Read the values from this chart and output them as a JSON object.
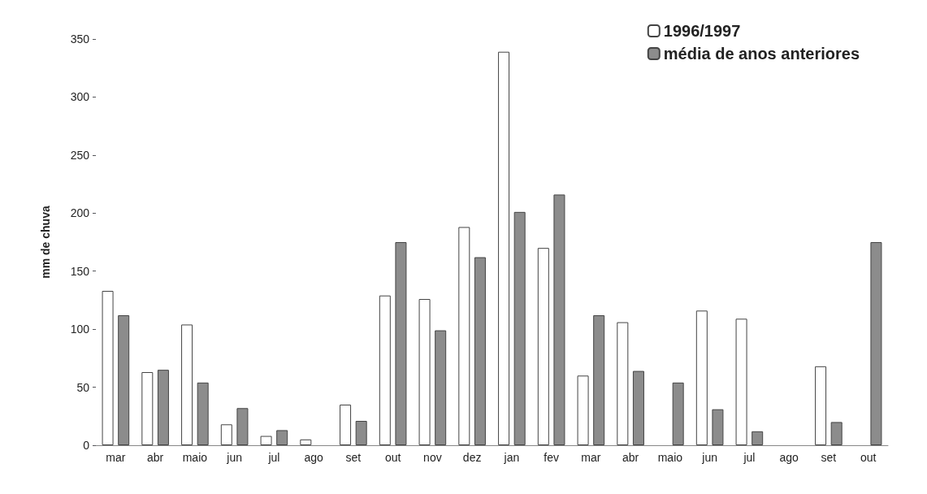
{
  "chart_data": {
    "type": "bar",
    "ylabel": "mm de chuva",
    "categories": [
      "mar",
      "abr",
      "maio",
      "jun",
      "jul",
      "ago",
      "set",
      "out",
      "nov",
      "dez",
      "jan",
      "fev",
      "mar",
      "abr",
      "maio",
      "jun",
      "jul",
      "ago",
      "set",
      "out"
    ],
    "series": [
      {
        "name": "1996/1997",
        "color": "#ffffff",
        "values": [
          133,
          63,
          104,
          18,
          8,
          5,
          35,
          129,
          126,
          188,
          339,
          170,
          60,
          106,
          null,
          116,
          109,
          null,
          68,
          null
        ]
      },
      {
        "name": "média de anos anteriores",
        "color": "#8c8c8c",
        "values": [
          112,
          65,
          54,
          32,
          13,
          0,
          21,
          175,
          99,
          162,
          201,
          216,
          112,
          64,
          54,
          31,
          12,
          0,
          20,
          175
        ]
      }
    ],
    "ylim": [
      0,
      350
    ],
    "yticks": [
      0,
      50,
      100,
      150,
      200,
      250,
      300,
      350
    ],
    "grid": false,
    "legend": "top right"
  }
}
